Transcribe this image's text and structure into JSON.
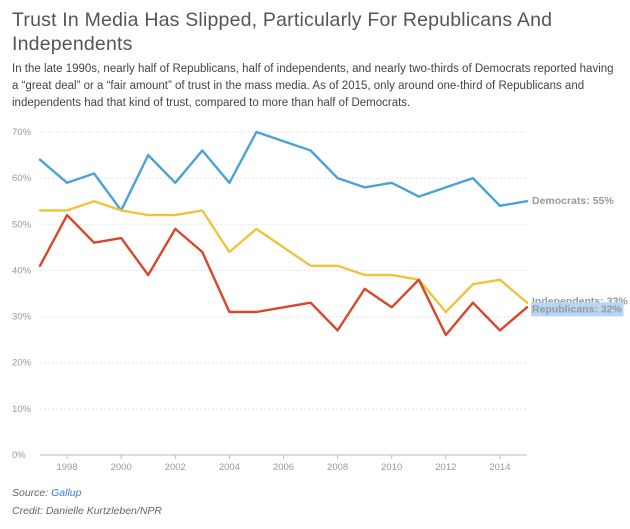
{
  "header": {
    "title": "Trust In Media Has Slipped, Particularly For Republicans And Independents",
    "description": "In the late 1990s, nearly half of Republicans, half of independents, and nearly two-thirds of Democrats reported having a “great deal” or a “fair amount” of trust in the mass media. As of 2015, only around one-third of Republicans and independents had that kind of trust, compared to more than half of Democrats."
  },
  "footer": {
    "source_label": "Source:",
    "source_name": "Gallup",
    "credit": "Credit: Danielle Kurtzleben/NPR"
  },
  "chart_data": {
    "type": "line",
    "x": [
      1997,
      1998,
      1999,
      2000,
      2001,
      2002,
      2003,
      2004,
      2005,
      2006,
      2007,
      2008,
      2009,
      2010,
      2011,
      2012,
      2013,
      2014,
      2015
    ],
    "x_ticks": [
      1998,
      2000,
      2002,
      2004,
      2006,
      2008,
      2010,
      2012,
      2014
    ],
    "y_ticks": [
      0,
      10,
      20,
      30,
      40,
      50,
      60,
      70
    ],
    "y_tick_labels": [
      "0%",
      "10%",
      "20%",
      "30%",
      "40%",
      "50%",
      "60%",
      "70%"
    ],
    "xlim": [
      1997,
      2015
    ],
    "ylim": [
      0,
      70
    ],
    "series": [
      {
        "name": "Democrats",
        "end_label": "Democrats: 55%",
        "color": "#4aa3d8",
        "values": [
          64,
          59,
          61,
          53,
          65,
          59,
          66,
          59,
          70,
          68,
          66,
          60,
          58,
          59,
          56,
          58,
          60,
          54,
          55
        ]
      },
      {
        "name": "Independents",
        "end_label": "Independents: 33%",
        "color": "#f0c43a",
        "values": [
          53,
          53,
          55,
          53,
          52,
          52,
          53,
          44,
          49,
          45,
          41,
          41,
          39,
          39,
          38,
          31,
          37,
          38,
          33
        ]
      },
      {
        "name": "Republicans",
        "end_label": "Republicans: 32%",
        "color": "#d9472b",
        "values": [
          41,
          52,
          46,
          47,
          39,
          49,
          44,
          31,
          31,
          32,
          33,
          27,
          36,
          32,
          38,
          26,
          33,
          27,
          32
        ]
      }
    ],
    "grid": true,
    "highlight_color": "#b7d6f5"
  }
}
